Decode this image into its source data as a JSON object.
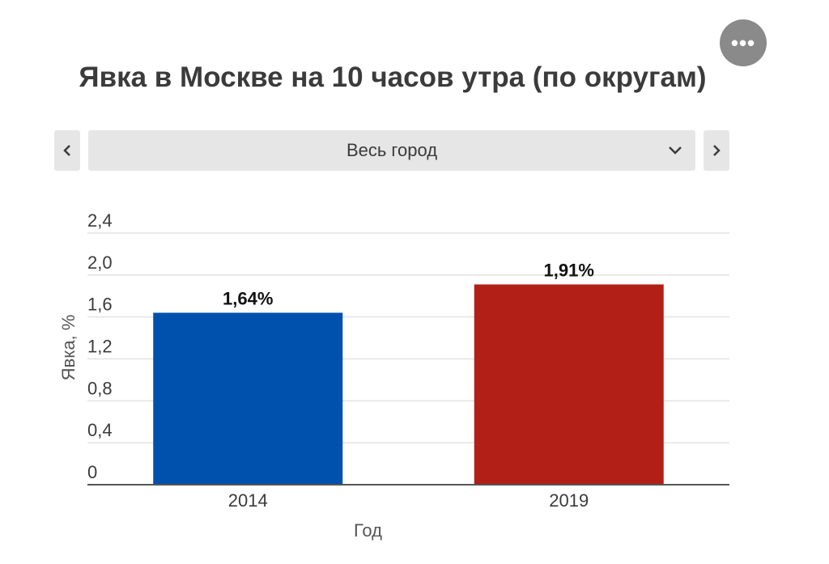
{
  "menu": {
    "label": "•••"
  },
  "chart_data": {
    "type": "bar",
    "title": "Явка в Москве на 10 часов утра (по округам)",
    "categories": [
      "2014",
      "2019"
    ],
    "values": [
      1.64,
      1.91
    ],
    "data_labels": [
      "1,64%",
      "1,91%"
    ],
    "colors": [
      "#0051ad",
      "#b21f16"
    ],
    "xlabel": "Год",
    "ylabel": "Явка, %",
    "ylim": [
      0,
      2.4
    ],
    "yticks": [
      0,
      0.4,
      0.8,
      1.2,
      1.6,
      2.0,
      2.4
    ],
    "ytick_labels": [
      "0",
      "0,4",
      "0,8",
      "1,2",
      "1,6",
      "2,0",
      "2,4"
    ],
    "grid": true,
    "legend": "none"
  },
  "selector": {
    "value": "Весь город"
  }
}
